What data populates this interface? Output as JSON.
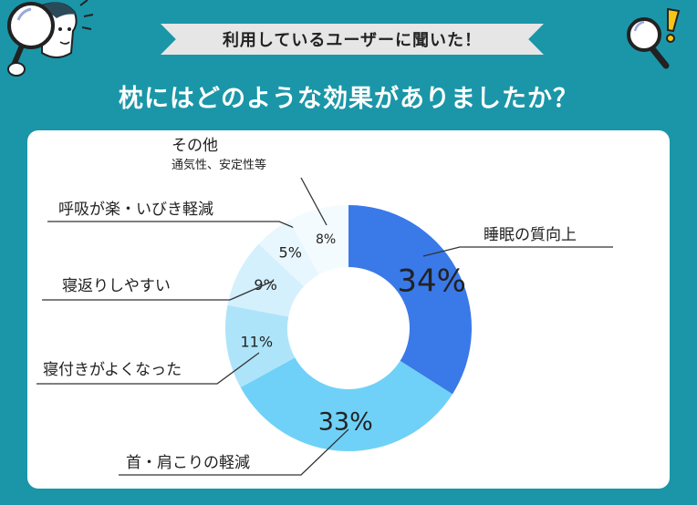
{
  "banner": {
    "text": "利用しているユーザーに聞いた！"
  },
  "headline": {
    "text": "枕にはどのような効果がありましたか？"
  },
  "icons": {
    "left": "person-with-magnifier-icon",
    "right": "magnifier-exclamation-icon"
  },
  "colors": {
    "background": "#1a96a8",
    "card": "#ffffff",
    "leader": "#333333"
  },
  "chart_data": {
    "type": "pie",
    "style": "donut",
    "title": "枕にはどのような効果がありましたか？",
    "slices": [
      {
        "label": "睡眠の質向上",
        "value": 34,
        "value_label": "34%",
        "color": "#3a79e8"
      },
      {
        "label": "首・肩こりの軽減",
        "value": 33,
        "value_label": "33%",
        "color": "#6fd1f7"
      },
      {
        "label": "寝付きがよくなった",
        "value": 11,
        "value_label": "11%",
        "color": "#aee4fa"
      },
      {
        "label": "寝返りしやすい",
        "value": 9,
        "value_label": "9%",
        "color": "#d4f0fc"
      },
      {
        "label": "呼吸が楽・いびき軽減",
        "value": 5,
        "value_label": "5%",
        "color": "#e8f7fd"
      },
      {
        "label": "その他",
        "sublabel": "通気性、安定性等",
        "value": 8,
        "value_label": "8%",
        "color": "#f4fbfe"
      }
    ]
  }
}
